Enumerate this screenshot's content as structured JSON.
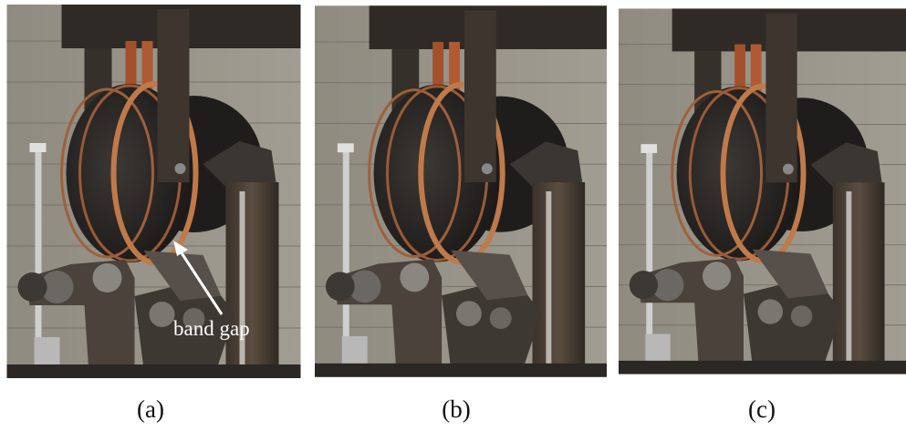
{
  "figure": {
    "panels": [
      {
        "caption": "(a)",
        "annotation": "band gap"
      },
      {
        "caption": "(b)"
      },
      {
        "caption": "(c)"
      }
    ]
  }
}
